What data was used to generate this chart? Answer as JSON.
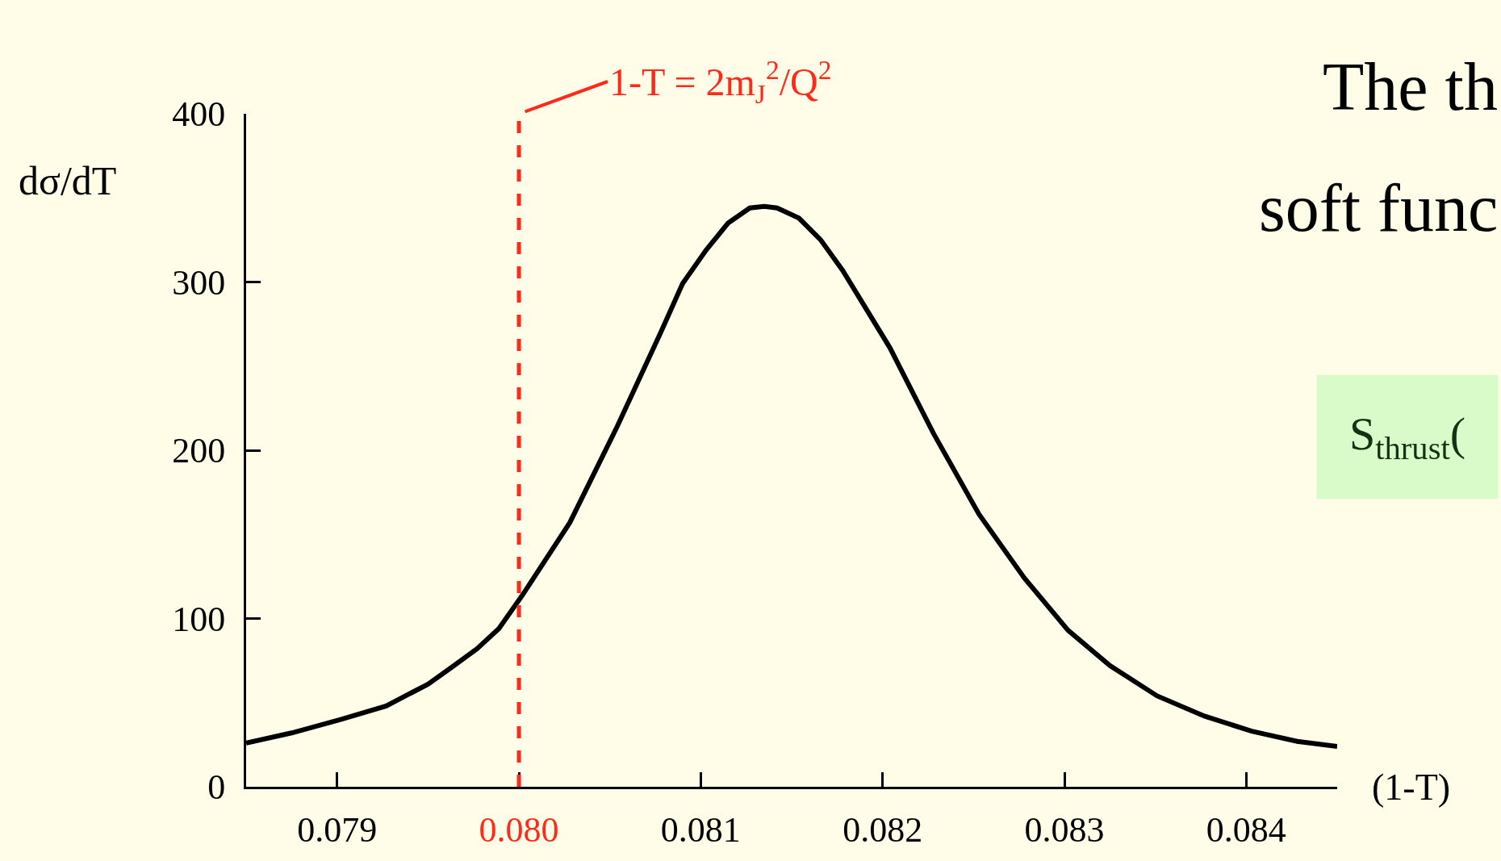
{
  "chart_data": {
    "type": "line",
    "x": [
      0.0785,
      0.07875,
      0.07902,
      0.07927,
      0.0795,
      0.07963,
      0.07977,
      0.07989,
      0.08002,
      0.08028,
      0.08054,
      0.08078,
      0.0809,
      0.08103,
      0.08115,
      0.08127,
      0.08135,
      0.08142,
      0.08154,
      0.08166,
      0.08178,
      0.08204,
      0.08228,
      0.08253,
      0.08278,
      0.08302,
      0.08325,
      0.08351,
      0.08377,
      0.08403,
      0.08428,
      0.0845
    ],
    "series": [
      {
        "color": "#000000",
        "values": [
          26,
          32,
          40,
          48,
          61,
          71,
          82,
          94,
          114,
          157,
          214,
          270,
          299,
          319,
          335,
          344,
          345,
          344,
          338,
          325,
          307,
          261,
          210,
          162,
          124,
          93,
          72,
          54,
          42,
          33,
          27,
          24
        ]
      }
    ],
    "xlabel": "(1-T)",
    "ylabel": "dσ/dT",
    "xlim": [
      0.0785,
      0.0845
    ],
    "ylim": [
      0,
      400
    ],
    "xticks": [
      {
        "value": 0.079,
        "label": "0.079"
      },
      {
        "value": 0.08,
        "label": "0.080"
      },
      {
        "value": 0.081,
        "label": "0.081"
      },
      {
        "value": 0.082,
        "label": "0.082"
      },
      {
        "value": 0.083,
        "label": "0.083"
      },
      {
        "value": 0.084,
        "label": "0.084"
      }
    ],
    "yticks": [
      0,
      100,
      200,
      300,
      400
    ],
    "ref_lines": [
      {
        "axis": "x",
        "value": 0.08,
        "color": "#ff2a1a",
        "line_style": "dashed"
      }
    ],
    "annotations": [
      {
        "text": "1-T = 2m$_{J}$$^{2}$/Q$^{2}$",
        "x": 0.08,
        "y": 400
      },
      "The th",
      "soft func",
      "S$_{thrust}$("
    ],
    "grid": false,
    "marker": "none",
    "line_style": "solid"
  }
}
